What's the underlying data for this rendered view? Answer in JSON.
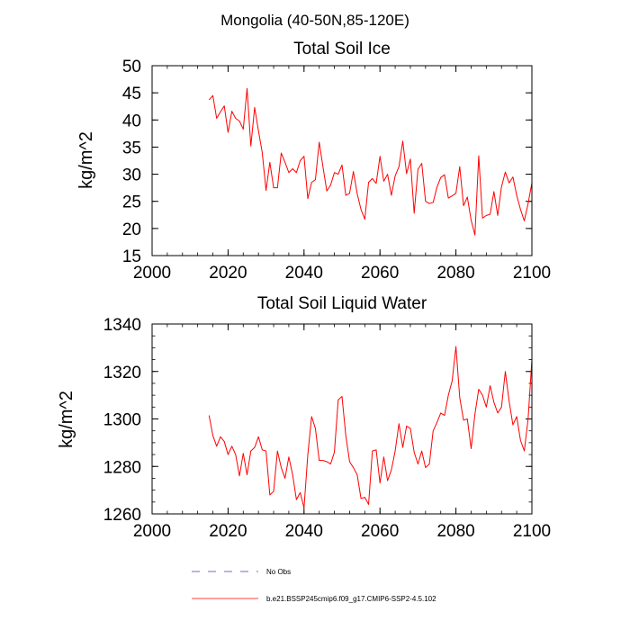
{
  "suptitle": "Mongolia (40-50N,85-120E)",
  "legend": {
    "obs_label": "No Obs",
    "obs_color": "#3b3bc8",
    "model_label": "b.e21.BSSP245cmip6.f09_g17.CMIP6-SSP2-4.5.102",
    "model_color": "#ff0000"
  },
  "chart_data": [
    {
      "type": "line",
      "title": "Total Soil Ice",
      "ylabel": "kg/m^2",
      "xlabel": "",
      "xlim": [
        2000,
        2100
      ],
      "ylim": [
        15,
        50
      ],
      "xticks": [
        "2000",
        "2020",
        "2040",
        "2060",
        "2080",
        "2100"
      ],
      "yticks": [
        "15",
        "20",
        "25",
        "30",
        "35",
        "40",
        "45",
        "50"
      ],
      "grid": false,
      "series": [
        {
          "color": "#ff0000",
          "x": [
            2015,
            2016,
            2017,
            2018,
            2019,
            2020,
            2021,
            2022,
            2023,
            2024,
            2025,
            2026,
            2027,
            2028,
            2029,
            2030,
            2031,
            2032,
            2033,
            2034,
            2035,
            2036,
            2037,
            2038,
            2039,
            2040,
            2041,
            2042,
            2043,
            2044,
            2045,
            2046,
            2047,
            2048,
            2049,
            2050,
            2051,
            2052,
            2053,
            2054,
            2055,
            2056,
            2057,
            2058,
            2059,
            2060,
            2061,
            2062,
            2063,
            2064,
            2065,
            2066,
            2067,
            2068,
            2069,
            2070,
            2071,
            2072,
            2073,
            2074,
            2075,
            2076,
            2077,
            2078,
            2079,
            2080,
            2081,
            2082,
            2083,
            2084,
            2085,
            2086,
            2087,
            2088,
            2089,
            2090,
            2091,
            2092,
            2093,
            2094,
            2095,
            2096,
            2097,
            2098,
            2099,
            2100
          ],
          "values": [
            43.7,
            44.5,
            40.3,
            41.5,
            42.6,
            37.7,
            41.6,
            40.3,
            39.8,
            38.3,
            45.8,
            35.2,
            42.3,
            38.0,
            34.0,
            27.0,
            32.2,
            27.5,
            27.5,
            33.9,
            32.2,
            30.3,
            31.0,
            30.3,
            32.5,
            33.3,
            25.5,
            28.5,
            29.0,
            35.9,
            31.3,
            26.9,
            28.0,
            30.3,
            30.0,
            31.7,
            26.1,
            26.5,
            30.5,
            26.4,
            23.5,
            21.7,
            28.5,
            29.2,
            28.3,
            33.3,
            28.7,
            30.0,
            26.1,
            29.7,
            31.4,
            36.1,
            30.1,
            32.8,
            22.8,
            30.9,
            32.0,
            25.0,
            24.6,
            24.8,
            27.6,
            29.4,
            29.9,
            25.6,
            26.0,
            26.5,
            31.4,
            24.2,
            25.8,
            21.5,
            18.8,
            33.4,
            21.9,
            22.4,
            22.6,
            26.8,
            22.4,
            27.7,
            30.4,
            28.4,
            29.5,
            26.1,
            23.5,
            21.4,
            24.6,
            28.4
          ]
        }
      ]
    },
    {
      "type": "line",
      "title": "Total Soil Liquid Water",
      "ylabel": "kg/m^2",
      "xlabel": "",
      "xlim": [
        2000,
        2100
      ],
      "ylim": [
        1260,
        1340
      ],
      "xticks": [
        "2000",
        "2020",
        "2040",
        "2060",
        "2080",
        "2100"
      ],
      "yticks": [
        "1260",
        "1280",
        "1300",
        "1320",
        "1340"
      ],
      "grid": false,
      "series": [
        {
          "color": "#ff0000",
          "x": [
            2015,
            2016,
            2017,
            2018,
            2019,
            2020,
            2021,
            2022,
            2023,
            2024,
            2025,
            2026,
            2027,
            2028,
            2029,
            2030,
            2031,
            2032,
            2033,
            2034,
            2035,
            2036,
            2037,
            2038,
            2039,
            2040,
            2041,
            2042,
            2043,
            2044,
            2045,
            2046,
            2047,
            2048,
            2049,
            2050,
            2051,
            2052,
            2053,
            2054,
            2055,
            2056,
            2057,
            2058,
            2059,
            2060,
            2061,
            2062,
            2063,
            2064,
            2065,
            2066,
            2067,
            2068,
            2069,
            2070,
            2071,
            2072,
            2073,
            2074,
            2075,
            2076,
            2077,
            2078,
            2079,
            2080,
            2081,
            2082,
            2083,
            2084,
            2085,
            2086,
            2087,
            2088,
            2089,
            2090,
            2091,
            2092,
            2093,
            2094,
            2095,
            2096,
            2097,
            2098,
            2099,
            2100
          ],
          "values": [
            1301.5,
            1293,
            1288.5,
            1292.5,
            1290.5,
            1285,
            1288.5,
            1285,
            1276,
            1285.5,
            1276.5,
            1286.5,
            1288,
            1292.5,
            1287,
            1286.5,
            1268,
            1269.5,
            1286.5,
            1279.5,
            1275,
            1284,
            1276.5,
            1266,
            1269,
            1262.5,
            1285,
            1301,
            1296,
            1282.5,
            1282.5,
            1282,
            1281,
            1286,
            1308,
            1309.5,
            1293,
            1282,
            1279.5,
            1276.5,
            1266.5,
            1267,
            1264,
            1286.5,
            1287,
            1273,
            1284,
            1274,
            1278.5,
            1286.5,
            1298,
            1288,
            1297,
            1296,
            1286,
            1281,
            1286.5,
            1279.5,
            1281,
            1295,
            1298.5,
            1302.5,
            1301.5,
            1310,
            1316,
            1330.5,
            1309,
            1299.5,
            1300,
            1287.5,
            1302,
            1312.5,
            1310,
            1305,
            1314,
            1307,
            1302.5,
            1305,
            1320,
            1307.5,
            1297.5,
            1301,
            1291,
            1286.5,
            1300,
            1325
          ]
        }
      ]
    }
  ]
}
